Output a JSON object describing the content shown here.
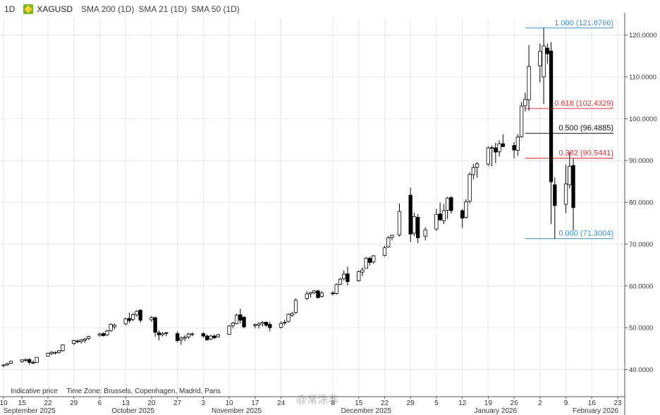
{
  "toolbar": {
    "interval": "1D",
    "symbol": "XAGUSD",
    "indicators": [
      "SMA 200 (1D)",
      "SMA 21 (1D)",
      "SMA 50 (1D)"
    ]
  },
  "footer": {
    "note": "Indicative price",
    "timezone": "Time Zone: Brussels, Copenhagen, Madrid, Paris"
  },
  "watermark": "@常涂非",
  "colors": {
    "up_body": "#ffffff",
    "down_body": "#000000",
    "fib_blue": "#3a8fd0",
    "fib_red": "#e03131",
    "fib_black": "#111111",
    "grid": "#e6e6e6"
  },
  "chart_data": {
    "type": "candlestick",
    "ylim": [
      33.5,
      124
    ],
    "y_ticks": [
      40,
      50,
      60,
      70,
      80,
      90,
      100,
      110,
      120
    ],
    "y_tick_labels": [
      "40.0000",
      "50.0000",
      "60.0000",
      "70.0000",
      "80.0000",
      "90.0000",
      "100.0000",
      "110.0000",
      "120.0000"
    ],
    "x_tick_labels": [
      {
        "date": "2025-09-10",
        "label": "10"
      },
      {
        "date": "2025-09-15",
        "label": "15"
      },
      {
        "date": "2025-09-22",
        "label": "22"
      },
      {
        "date": "2025-09-29",
        "label": "29"
      },
      {
        "date": "2025-10-06",
        "label": "6"
      },
      {
        "date": "2025-10-13",
        "label": "13"
      },
      {
        "date": "2025-10-20",
        "label": "20"
      },
      {
        "date": "2025-10-27",
        "label": "27"
      },
      {
        "date": "2025-11-03",
        "label": "3"
      },
      {
        "date": "2025-11-10",
        "label": "10"
      },
      {
        "date": "2025-11-17",
        "label": "17"
      },
      {
        "date": "2025-11-24",
        "label": "24"
      },
      {
        "date": "2025-12-08",
        "label": "8"
      },
      {
        "date": "2025-12-15",
        "label": "15"
      },
      {
        "date": "2025-12-22",
        "label": "22"
      },
      {
        "date": "2025-12-29",
        "label": "29"
      },
      {
        "date": "2026-01-05",
        "label": "5"
      },
      {
        "date": "2026-01-12",
        "label": "12"
      },
      {
        "date": "2026-01-19",
        "label": "19"
      },
      {
        "date": "2026-01-26",
        "label": "26"
      },
      {
        "date": "2026-02-02",
        "label": "2"
      },
      {
        "date": "2026-02-09",
        "label": "9"
      },
      {
        "date": "2026-02-16",
        "label": "16"
      },
      {
        "date": "2026-02-23",
        "label": "23"
      }
    ],
    "month_labels": [
      {
        "date": "2025-09-17",
        "label": "September 2025"
      },
      {
        "date": "2025-10-15",
        "label": "October 2025"
      },
      {
        "date": "2025-11-12",
        "label": "November 2025"
      },
      {
        "date": "2025-12-17",
        "label": "December 2025"
      },
      {
        "date": "2026-01-21",
        "label": "January 2026"
      },
      {
        "date": "2026-02-17",
        "label": "February 2026"
      }
    ],
    "fibonacci": [
      {
        "level": "1.000",
        "price": 121.6766,
        "label": "1.000 (121.6766)",
        "color": "#3a8fd0"
      },
      {
        "level": "0.618",
        "price": 102.4329,
        "label": "0.618 (102.4329)",
        "color": "#e03131"
      },
      {
        "level": "0.500",
        "price": 96.4885,
        "label": "0.500 (96.4885)",
        "color": "#111111"
      },
      {
        "level": "0.382",
        "price": 90.5441,
        "label": "0.382 (90.5441)",
        "color": "#e03131"
      },
      {
        "level": "0.000",
        "price": 71.3004,
        "label": "0.000 (71.3004)",
        "color": "#3a8fd0"
      }
    ],
    "fib_start_date": "2026-01-29",
    "candles": [
      {
        "d": "2025-09-10",
        "o": 40.9,
        "h": 41.3,
        "l": 40.6,
        "c": 41.1
      },
      {
        "d": "2025-09-11",
        "o": 41.1,
        "h": 41.6,
        "l": 40.8,
        "c": 41.4
      },
      {
        "d": "2025-09-12",
        "o": 41.5,
        "h": 42.1,
        "l": 41.3,
        "c": 42.0
      },
      {
        "d": "2025-09-15",
        "o": 41.9,
        "h": 42.4,
        "l": 41.6,
        "c": 42.3
      },
      {
        "d": "2025-09-16",
        "o": 42.2,
        "h": 42.6,
        "l": 41.8,
        "c": 42.4
      },
      {
        "d": "2025-09-17",
        "o": 42.4,
        "h": 42.7,
        "l": 41.2,
        "c": 41.7
      },
      {
        "d": "2025-09-18",
        "o": 41.7,
        "h": 42.2,
        "l": 41.3,
        "c": 41.6
      },
      {
        "d": "2025-09-19",
        "o": 41.7,
        "h": 43.0,
        "l": 41.6,
        "c": 42.9
      },
      {
        "d": "2025-09-22",
        "o": 43.2,
        "h": 44.0,
        "l": 43.1,
        "c": 43.9
      },
      {
        "d": "2025-09-23",
        "o": 43.8,
        "h": 44.4,
        "l": 43.5,
        "c": 44.1
      },
      {
        "d": "2025-09-24",
        "o": 44.0,
        "h": 44.3,
        "l": 43.6,
        "c": 44.1
      },
      {
        "d": "2025-09-25",
        "o": 44.1,
        "h": 44.6,
        "l": 43.8,
        "c": 44.5
      },
      {
        "d": "2025-09-26",
        "o": 44.5,
        "h": 46.0,
        "l": 44.3,
        "c": 45.9
      },
      {
        "d": "2025-09-29",
        "o": 46.2,
        "h": 47.1,
        "l": 45.9,
        "c": 46.9
      },
      {
        "d": "2025-09-30",
        "o": 46.8,
        "h": 47.2,
        "l": 46.3,
        "c": 46.7
      },
      {
        "d": "2025-10-01",
        "o": 46.7,
        "h": 47.3,
        "l": 46.2,
        "c": 47.1
      },
      {
        "d": "2025-10-02",
        "o": 47.0,
        "h": 47.6,
        "l": 46.4,
        "c": 47.3
      },
      {
        "d": "2025-10-03",
        "o": 47.4,
        "h": 48.1,
        "l": 47.1,
        "c": 47.9
      },
      {
        "d": "2025-10-06",
        "o": 48.2,
        "h": 48.8,
        "l": 47.9,
        "c": 48.5
      },
      {
        "d": "2025-10-07",
        "o": 48.6,
        "h": 48.9,
        "l": 47.9,
        "c": 48.1
      },
      {
        "d": "2025-10-08",
        "o": 48.3,
        "h": 49.5,
        "l": 48.0,
        "c": 49.2
      },
      {
        "d": "2025-10-09",
        "o": 49.3,
        "h": 51.1,
        "l": 49.0,
        "c": 50.8
      },
      {
        "d": "2025-10-10",
        "o": 50.2,
        "h": 51.0,
        "l": 49.6,
        "c": 50.6
      },
      {
        "d": "2025-10-13",
        "o": 50.9,
        "h": 52.4,
        "l": 50.6,
        "c": 52.1
      },
      {
        "d": "2025-10-14",
        "o": 52.2,
        "h": 53.6,
        "l": 51.1,
        "c": 51.7
      },
      {
        "d": "2025-10-15",
        "o": 52.0,
        "h": 53.5,
        "l": 51.5,
        "c": 53.1
      },
      {
        "d": "2025-10-16",
        "o": 53.1,
        "h": 54.2,
        "l": 52.6,
        "c": 53.9
      },
      {
        "d": "2025-10-17",
        "o": 54.2,
        "h": 54.4,
        "l": 51.2,
        "c": 51.8
      },
      {
        "d": "2025-10-20",
        "o": 51.9,
        "h": 52.8,
        "l": 51.4,
        "c": 52.4
      },
      {
        "d": "2025-10-21",
        "o": 52.4,
        "h": 52.7,
        "l": 47.8,
        "c": 48.9
      },
      {
        "d": "2025-10-22",
        "o": 48.8,
        "h": 49.4,
        "l": 47.0,
        "c": 48.3
      },
      {
        "d": "2025-10-23",
        "o": 48.3,
        "h": 49.0,
        "l": 47.9,
        "c": 48.6
      },
      {
        "d": "2025-10-24",
        "o": 48.8,
        "h": 49.0,
        "l": 48.0,
        "c": 48.7
      },
      {
        "d": "2025-10-27",
        "o": 48.6,
        "h": 49.1,
        "l": 46.5,
        "c": 46.9
      },
      {
        "d": "2025-10-28",
        "o": 47.1,
        "h": 47.9,
        "l": 45.9,
        "c": 47.5
      },
      {
        "d": "2025-10-29",
        "o": 47.5,
        "h": 48.2,
        "l": 46.8,
        "c": 47.7
      },
      {
        "d": "2025-10-30",
        "o": 47.8,
        "h": 48.8,
        "l": 47.3,
        "c": 48.5
      },
      {
        "d": "2025-10-31",
        "o": 48.5,
        "h": 48.9,
        "l": 48.0,
        "c": 48.5
      },
      {
        "d": "2025-11-03",
        "o": 48.6,
        "h": 48.9,
        "l": 47.6,
        "c": 48.0
      },
      {
        "d": "2025-11-04",
        "o": 48.0,
        "h": 48.4,
        "l": 46.9,
        "c": 47.1
      },
      {
        "d": "2025-11-05",
        "o": 47.3,
        "h": 48.3,
        "l": 47.0,
        "c": 48.0
      },
      {
        "d": "2025-11-06",
        "o": 48.0,
        "h": 48.4,
        "l": 47.3,
        "c": 47.6
      },
      {
        "d": "2025-11-07",
        "o": 47.8,
        "h": 48.5,
        "l": 47.6,
        "c": 48.3
      },
      {
        "d": "2025-11-10",
        "o": 48.4,
        "h": 50.6,
        "l": 48.3,
        "c": 50.4
      },
      {
        "d": "2025-11-11",
        "o": 50.5,
        "h": 51.4,
        "l": 49.9,
        "c": 51.1
      },
      {
        "d": "2025-11-12",
        "o": 51.0,
        "h": 53.4,
        "l": 50.8,
        "c": 53.0
      },
      {
        "d": "2025-11-13",
        "o": 53.1,
        "h": 54.5,
        "l": 51.0,
        "c": 51.8
      },
      {
        "d": "2025-11-14",
        "o": 52.5,
        "h": 52.8,
        "l": 49.9,
        "c": 50.2
      },
      {
        "d": "2025-11-17",
        "o": 50.6,
        "h": 51.0,
        "l": 49.9,
        "c": 50.7
      },
      {
        "d": "2025-11-18",
        "o": 50.6,
        "h": 51.3,
        "l": 49.8,
        "c": 50.9
      },
      {
        "d": "2025-11-19",
        "o": 51.0,
        "h": 51.6,
        "l": 50.3,
        "c": 51.3
      },
      {
        "d": "2025-11-20",
        "o": 51.3,
        "h": 51.5,
        "l": 50.2,
        "c": 50.6
      },
      {
        "d": "2025-11-21",
        "o": 50.8,
        "h": 51.4,
        "l": 49.1,
        "c": 50.0
      },
      {
        "d": "2025-11-24",
        "o": 50.1,
        "h": 51.5,
        "l": 49.8,
        "c": 51.0
      },
      {
        "d": "2025-11-25",
        "o": 51.1,
        "h": 51.9,
        "l": 50.6,
        "c": 51.3
      },
      {
        "d": "2025-11-26",
        "o": 51.5,
        "h": 53.4,
        "l": 51.2,
        "c": 53.2
      },
      {
        "d": "2025-11-27",
        "o": 53.0,
        "h": 53.8,
        "l": 52.6,
        "c": 53.4
      },
      {
        "d": "2025-11-28",
        "o": 53.6,
        "h": 57.0,
        "l": 53.3,
        "c": 56.6
      },
      {
        "d": "2025-12-01",
        "o": 57.0,
        "h": 58.8,
        "l": 56.6,
        "c": 58.1
      },
      {
        "d": "2025-12-02",
        "o": 58.1,
        "h": 58.6,
        "l": 57.2,
        "c": 58.4
      },
      {
        "d": "2025-12-03",
        "o": 58.4,
        "h": 59.0,
        "l": 58.0,
        "c": 58.8
      },
      {
        "d": "2025-12-04",
        "o": 58.8,
        "h": 59.1,
        "l": 56.9,
        "c": 57.2
      },
      {
        "d": "2025-12-05",
        "o": 57.5,
        "h": 58.8,
        "l": 57.2,
        "c": 58.3
      },
      {
        "d": "2025-12-08",
        "o": 58.3,
        "h": 58.8,
        "l": 57.7,
        "c": 58.1
      },
      {
        "d": "2025-12-09",
        "o": 58.2,
        "h": 60.6,
        "l": 57.9,
        "c": 60.3
      },
      {
        "d": "2025-12-10",
        "o": 60.4,
        "h": 61.9,
        "l": 60.2,
        "c": 61.6
      },
      {
        "d": "2025-12-11",
        "o": 61.7,
        "h": 63.7,
        "l": 61.3,
        "c": 62.8
      },
      {
        "d": "2025-12-12",
        "o": 62.9,
        "h": 64.6,
        "l": 60.1,
        "c": 61.0
      },
      {
        "d": "2025-12-15",
        "o": 61.2,
        "h": 63.7,
        "l": 61.0,
        "c": 63.4
      },
      {
        "d": "2025-12-16",
        "o": 63.3,
        "h": 64.4,
        "l": 62.3,
        "c": 63.8
      },
      {
        "d": "2025-12-17",
        "o": 64.2,
        "h": 66.9,
        "l": 64.1,
        "c": 66.6
      },
      {
        "d": "2025-12-18",
        "o": 66.6,
        "h": 67.0,
        "l": 64.9,
        "c": 65.6
      },
      {
        "d": "2025-12-19",
        "o": 65.7,
        "h": 67.4,
        "l": 65.3,
        "c": 67.2
      },
      {
        "d": "2025-12-22",
        "o": 67.3,
        "h": 69.6,
        "l": 67.0,
        "c": 69.1
      },
      {
        "d": "2025-12-23",
        "o": 69.3,
        "h": 71.9,
        "l": 69.1,
        "c": 71.5
      },
      {
        "d": "2025-12-24",
        "o": 71.6,
        "h": 72.3,
        "l": 70.9,
        "c": 72.1
      },
      {
        "d": "2025-12-26",
        "o": 72.2,
        "h": 79.7,
        "l": 71.8,
        "c": 77.8
      },
      {
        "d": "2025-12-29",
        "o": 81.7,
        "h": 83.5,
        "l": 70.5,
        "c": 72.4
      },
      {
        "d": "2025-12-30",
        "o": 72.6,
        "h": 77.5,
        "l": 71.9,
        "c": 76.6
      },
      {
        "d": "2025-12-31",
        "o": 76.4,
        "h": 77.2,
        "l": 70.2,
        "c": 71.5
      },
      {
        "d": "2026-01-02",
        "o": 71.9,
        "h": 74.0,
        "l": 70.9,
        "c": 73.4
      },
      {
        "d": "2026-01-05",
        "o": 73.6,
        "h": 78.4,
        "l": 73.2,
        "c": 77.1
      },
      {
        "d": "2026-01-06",
        "o": 77.2,
        "h": 79.9,
        "l": 75.5,
        "c": 75.8
      },
      {
        "d": "2026-01-07",
        "o": 75.6,
        "h": 79.6,
        "l": 74.8,
        "c": 78.0
      },
      {
        "d": "2026-01-08",
        "o": 78.1,
        "h": 81.3,
        "l": 76.0,
        "c": 81.0
      },
      {
        "d": "2026-01-09",
        "o": 81.1,
        "h": 81.5,
        "l": 77.3,
        "c": 78.0
      },
      {
        "d": "2026-01-12",
        "o": 78.0,
        "h": 78.4,
        "l": 73.9,
        "c": 76.2
      },
      {
        "d": "2026-01-13",
        "o": 76.4,
        "h": 80.7,
        "l": 76.1,
        "c": 80.1
      },
      {
        "d": "2026-01-14",
        "o": 80.3,
        "h": 87.2,
        "l": 79.7,
        "c": 86.7
      },
      {
        "d": "2026-01-15",
        "o": 86.6,
        "h": 89.1,
        "l": 85.5,
        "c": 88.3
      },
      {
        "d": "2026-01-16",
        "o": 88.4,
        "h": 89.6,
        "l": 85.9,
        "c": 89.2
      },
      {
        "d": "2026-01-19",
        "o": 89.1,
        "h": 93.4,
        "l": 88.7,
        "c": 93.0
      },
      {
        "d": "2026-01-20",
        "o": 93.0,
        "h": 93.6,
        "l": 88.6,
        "c": 93.1
      },
      {
        "d": "2026-01-21",
        "o": 93.0,
        "h": 94.2,
        "l": 89.4,
        "c": 92.0
      },
      {
        "d": "2026-01-22",
        "o": 92.1,
        "h": 94.8,
        "l": 90.9,
        "c": 94.0
      },
      {
        "d": "2026-01-23",
        "o": 94.0,
        "h": 96.2,
        "l": 93.3,
        "c": 93.3
      },
      {
        "d": "2026-01-26",
        "o": 93.6,
        "h": 94.4,
        "l": 90.5,
        "c": 92.5
      },
      {
        "d": "2026-01-27",
        "o": 92.4,
        "h": 96.3,
        "l": 91.1,
        "c": 95.6
      },
      {
        "d": "2026-01-28",
        "o": 95.7,
        "h": 104.0,
        "l": 95.4,
        "c": 103.0
      },
      {
        "d": "2026-01-29",
        "o": 103.1,
        "h": 106.2,
        "l": 101.7,
        "c": 104.6
      },
      {
        "d": "2026-01-30",
        "o": 104.5,
        "h": 117.6,
        "l": 101.9,
        "c": 112.5
      },
      {
        "d": "2026-02-02",
        "o": 112.6,
        "h": 117.9,
        "l": 108.7,
        "c": 116.1
      },
      {
        "d": "2026-02-03",
        "o": 110.0,
        "h": 121.7,
        "l": 103.5,
        "c": 117.4
      },
      {
        "d": "2026-02-04",
        "o": 116.9,
        "h": 118.0,
        "l": 113.1,
        "c": 115.5
      },
      {
        "d": "2026-02-05",
        "o": 116.2,
        "h": 118.3,
        "l": 74.8,
        "c": 84.9
      },
      {
        "d": "2026-02-06",
        "o": 84.2,
        "h": 85.9,
        "l": 71.3,
        "c": 79.2
      },
      {
        "d": "2026-02-09",
        "o": 79.5,
        "h": 89.0,
        "l": 77.4,
        "c": 84.4
      },
      {
        "d": "2026-02-10",
        "o": 84.2,
        "h": 92.0,
        "l": 83.3,
        "c": 88.6
      },
      {
        "d": "2026-02-11",
        "o": 88.8,
        "h": 90.4,
        "l": 73.3,
        "c": 78.7
      }
    ]
  }
}
